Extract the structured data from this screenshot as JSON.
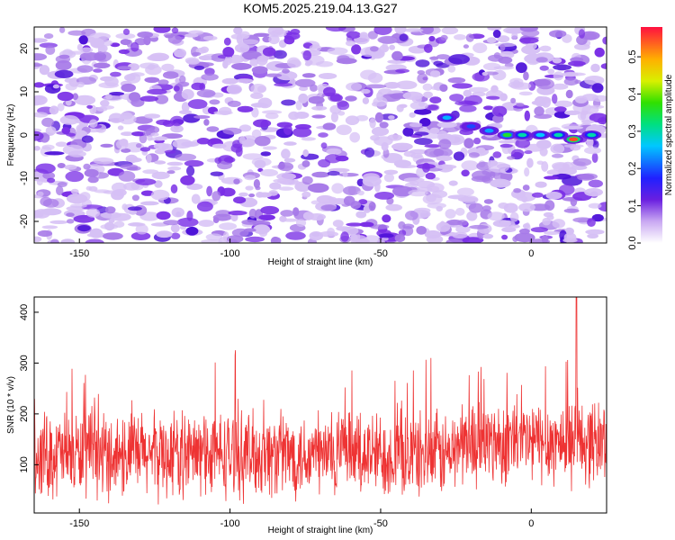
{
  "chart_data": [
    {
      "type": "heatmap",
      "title": "KOM5.2025.219.04.13.G27",
      "xlabel": "Height of straight line (km)",
      "ylabel": "Frequency (Hz)",
      "xlim": [
        -165,
        25
      ],
      "ylim": [
        -25,
        25
      ],
      "x_ticks": [
        -150,
        -100,
        -50,
        0
      ],
      "x_tick_labels": [
        "-150",
        "-100",
        "-50",
        "0"
      ],
      "y_ticks": [
        20,
        10,
        0,
        -10,
        -20
      ],
      "y_tick_labels": [
        "20",
        "10",
        "0",
        "-10",
        "-20"
      ],
      "colorbar": {
        "label": "Normalized spectral amplitude",
        "range": [
          0,
          0.58
        ],
        "ticks": [
          0.0,
          0.1,
          0.2,
          0.3,
          0.4,
          0.5
        ],
        "tick_labels": [
          "0.0",
          "0.1",
          "0.2",
          "0.3",
          "0.4",
          "0.5"
        ]
      },
      "signal_track": [
        {
          "x": -28,
          "y": 4,
          "amp": 0.25
        },
        {
          "x": -20,
          "y": 2,
          "amp": 0.2
        },
        {
          "x": -14,
          "y": 1,
          "amp": 0.24
        },
        {
          "x": -8,
          "y": 0,
          "amp": 0.36
        },
        {
          "x": -3,
          "y": 0,
          "amp": 0.3
        },
        {
          "x": 3,
          "y": 0,
          "amp": 0.26
        },
        {
          "x": 9,
          "y": 0,
          "amp": 0.3
        },
        {
          "x": 14,
          "y": -1,
          "amp": 0.55
        },
        {
          "x": 20,
          "y": 0,
          "amp": 0.3
        }
      ]
    },
    {
      "type": "line",
      "xlabel": "Height of straight line (km)",
      "ylabel": "SNR (10 * v/v)",
      "xlim": [
        -165,
        25
      ],
      "ylim": [
        5,
        430
      ],
      "x_ticks": [
        -150,
        -100,
        -50,
        0
      ],
      "x_tick_labels": [
        "-150",
        "-100",
        "-50",
        "0"
      ],
      "y_ticks": [
        100,
        200,
        300,
        400
      ],
      "y_tick_labels": [
        "100",
        "200",
        "300",
        "400"
      ],
      "series": [
        {
          "name": "SNR",
          "color": "#ee3333",
          "baseline": 120,
          "spread": 100,
          "peak": 430,
          "peak_x": 15
        }
      ]
    }
  ],
  "colors": {
    "line": "#ee3333",
    "background": "#ffffff",
    "axis": "#000000"
  }
}
